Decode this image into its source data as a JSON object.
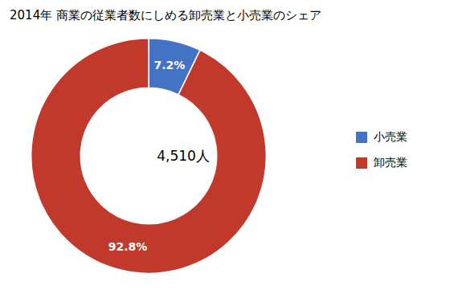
{
  "chart_data": {
    "type": "pie",
    "title": "2014年 商業の従業者数にしめる卸売業と小売業のシェア",
    "categories": [
      "小売業",
      "卸売業"
    ],
    "values": [
      7.2,
      92.8
    ],
    "value_labels": [
      "7.2%",
      "92.8%"
    ],
    "colors": [
      "#4472c4",
      "#c0392b"
    ],
    "annotations": [
      "4,510人"
    ],
    "data_labels": true,
    "legend": "right"
  }
}
